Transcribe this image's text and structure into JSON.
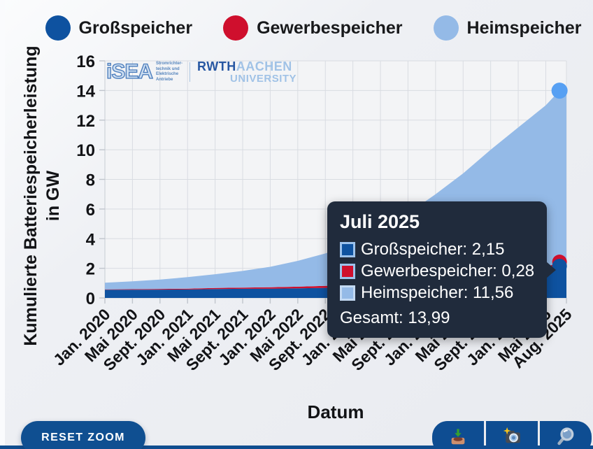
{
  "legend": {
    "items": [
      {
        "id": "grossspeicher",
        "label": "Großspeicher",
        "color": "#0e52a0"
      },
      {
        "id": "gewerbespeicher",
        "label": "Gewerbespeicher",
        "color": "#cf0f2d"
      },
      {
        "id": "heimspeicher",
        "label": "Heimspeicher",
        "color": "#94bae7"
      }
    ]
  },
  "axes": {
    "y_title_line1": "Kumulierte Batteriespeicherleistung",
    "y_title_line2": "in GW",
    "x_title": "Datum"
  },
  "watermark": {
    "isea_name": "iSEA",
    "isea_sub_lines": [
      "Stromrichter-",
      "technik und",
      "Elektrische",
      "Antriebe"
    ],
    "rwth_bold": "RWTH",
    "rwth_light": "AACHEN",
    "rwth_sub": "UNIVERSITY"
  },
  "tooltip": {
    "title": "Juli 2025",
    "rows": [
      {
        "text": "Großspeicher: 2,15",
        "color": "#0e52a0",
        "border": "#9cc2ec"
      },
      {
        "text": "Gewerbespeicher: 0,28",
        "color": "#cf0f2d",
        "border": "#9cc2ec"
      },
      {
        "text": "Heimspeicher: 11,56",
        "color": "#94bae7",
        "border": "#c3d9f2"
      }
    ],
    "total_text": "Gesamt: 13,99"
  },
  "controls": {
    "reset_zoom_label": "RESET ZOOM",
    "icon_buttons": [
      "download-icon",
      "screenshot-icon",
      "zoom-icon"
    ]
  },
  "chart_data": {
    "type": "area",
    "stacked": true,
    "title": "",
    "xlabel": "Datum",
    "ylabel": "Kumulierte Batteriespeicherleistung in GW",
    "ylim": [
      0,
      16
    ],
    "y_ticks": [
      0,
      2,
      4,
      6,
      8,
      10,
      12,
      14,
      16
    ],
    "grid": true,
    "legend_position": "top",
    "x_total_months": 67,
    "x_tick_months": [
      0,
      4,
      8,
      12,
      16,
      20,
      24,
      28,
      32,
      36,
      40,
      44,
      48,
      52,
      56,
      60,
      64,
      67
    ],
    "x_tick_labels": [
      "Jan. 2020",
      "Mai 2020",
      "Sept. 2020",
      "Jan. 2021",
      "Mai 2021",
      "Sept. 2021",
      "Jan. 2022",
      "Mai 2022",
      "Sept. 2022",
      "Jan. 2023",
      "Mai 2023",
      "Sept. 2023",
      "Jan. 2024",
      "Mai 2024",
      "Sept. 2024",
      "Jan. 2025",
      "Mai 2025",
      "Aug. 2025"
    ],
    "sample_months": [
      0,
      4,
      8,
      12,
      16,
      20,
      24,
      28,
      32,
      36,
      40,
      44,
      48,
      52,
      56,
      60,
      64,
      66,
      67
    ],
    "series": [
      {
        "name": "Großspeicher",
        "color": "#0e52a0",
        "values": [
          0.55,
          0.55,
          0.56,
          0.57,
          0.6,
          0.62,
          0.63,
          0.65,
          0.68,
          0.71,
          0.74,
          0.79,
          0.86,
          0.96,
          1.12,
          1.38,
          1.8,
          2.15,
          2.22
        ]
      },
      {
        "name": "Gewerbespeicher",
        "color": "#cf0f2d",
        "values": [
          0.03,
          0.04,
          0.05,
          0.06,
          0.07,
          0.08,
          0.09,
          0.11,
          0.13,
          0.15,
          0.18,
          0.2,
          0.22,
          0.24,
          0.25,
          0.26,
          0.27,
          0.28,
          0.28
        ]
      },
      {
        "name": "Heimspeicher",
        "color": "#94bae7",
        "values": [
          0.45,
          0.53,
          0.63,
          0.77,
          0.93,
          1.12,
          1.38,
          1.74,
          2.19,
          2.74,
          3.58,
          4.71,
          5.92,
          7.2,
          8.63,
          9.86,
          10.93,
          11.56,
          11.7
        ]
      }
    ],
    "hover_point": {
      "month": 66,
      "label": "Juli 2025",
      "grossspeicher": 2.15,
      "gewerbespeicher": 0.28,
      "heimspeicher": 11.56,
      "gesamt": 13.99,
      "marker_color": "#57a0f3"
    }
  }
}
